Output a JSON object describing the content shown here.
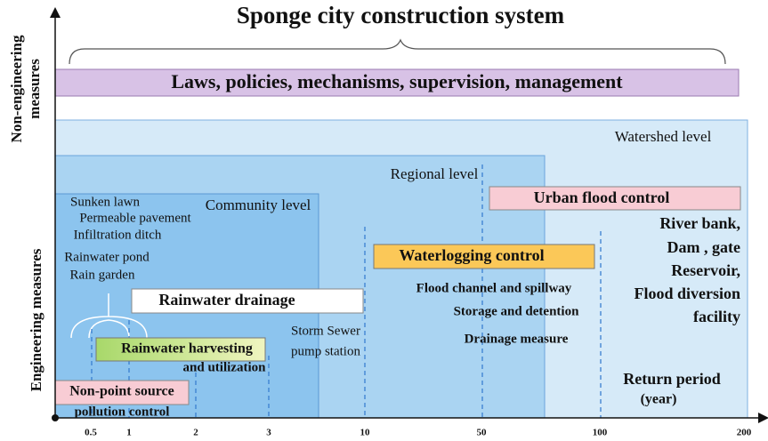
{
  "title": "Sponge city construction system",
  "y_axis": {
    "upper_label": [
      "Non-engineering",
      "measures"
    ],
    "lower_label": "Engineering measures"
  },
  "laws": "Laws, policies, mechanisms, supervision, management",
  "levels": {
    "watershed": "Watershed level",
    "regional": "Regional level",
    "community": "Community  level"
  },
  "community_measures": [
    "Sunken lawn",
    "Permeable pavement",
    "Infiltration ditch",
    "Rainwater pond",
    "Rain garden"
  ],
  "rainwater_drainage": "Rainwater drainage",
  "rainwater_harvesting": [
    "Rainwater harvesting",
    "and utilization"
  ],
  "storm_sewer": [
    "Storm Sewer",
    "pump station"
  ],
  "waterlogging": {
    "title": "Waterlogging control",
    "items": [
      "Flood channel and spillway",
      "Storage and detention",
      "Drainage measure"
    ]
  },
  "urban_flood": {
    "title": "Urban flood control",
    "items": [
      "River bank,",
      "Dam , gate",
      "Reservoir,",
      "Flood diversion",
      "facility"
    ]
  },
  "return_period": [
    "Return period",
    "(year)"
  ],
  "non_point": [
    "Non-point source",
    "pollution control"
  ],
  "x_ticks": [
    "0.5",
    "1",
    "2",
    "3",
    "10",
    "50",
    "100",
    "200"
  ]
}
